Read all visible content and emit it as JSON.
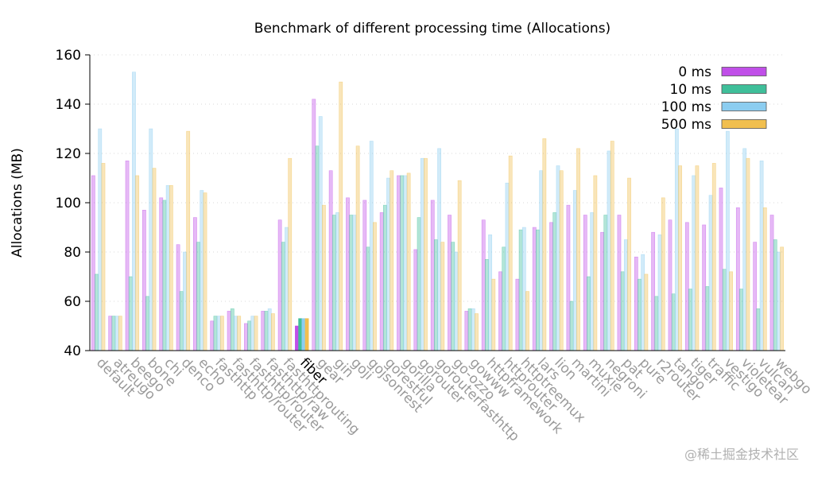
{
  "chart_data": {
    "type": "bar",
    "title": "Benchmark of different processing time (Allocations)",
    "xlabel": "",
    "ylabel": "Allocations (MB)",
    "ylim": [
      40,
      160
    ],
    "yticks": [
      40,
      60,
      80,
      100,
      120,
      140,
      160
    ],
    "highlight_category": "fiber",
    "legend_position": "top-right",
    "categories": [
      "default",
      "atreugo",
      "beego",
      "bone",
      "chi",
      "denco",
      "echo",
      "fasthttp",
      "fasthttp/router",
      "fasthttp/router",
      "fasthttp/raw",
      "fasthttprouting",
      "fiber",
      "gear",
      "gin",
      "goji",
      "gojsonrest",
      "gorestful",
      "gorilla",
      "gorouter",
      "gorouterfasthttp",
      "go-ozzo",
      "gowww",
      "httpframework",
      "httprouter",
      "httptreemux",
      "lars",
      "lion",
      "martini",
      "muxie",
      "negroni",
      "pat",
      "pure",
      "r2router",
      "tango",
      "tiger",
      "traffic",
      "vestigo",
      "violetear",
      "vulcan",
      "webgo"
    ],
    "series": [
      {
        "name": "0 ms",
        "color": "#c04fe8",
        "values": [
          111,
          54,
          117,
          97,
          102,
          83,
          94,
          52,
          56,
          51,
          56,
          93,
          50,
          142,
          113,
          102,
          101,
          96,
          111,
          81,
          101,
          95,
          56,
          93,
          72,
          69,
          90,
          92,
          99,
          95,
          88,
          95,
          78,
          88,
          93,
          92,
          91,
          106,
          98,
          84,
          95
        ]
      },
      {
        "name": "10 ms",
        "color": "#3fbf9a",
        "values": [
          71,
          54,
          70,
          62,
          101,
          64,
          84,
          54,
          57,
          52,
          56,
          84,
          53,
          123,
          95,
          95,
          82,
          99,
          111,
          94,
          85,
          84,
          57,
          77,
          82,
          89,
          89,
          96,
          60,
          70,
          95,
          72,
          69,
          62,
          63,
          65,
          66,
          73,
          65,
          57,
          85
        ]
      },
      {
        "name": "100 ms",
        "color": "#8ccdf0",
        "values": [
          130,
          54,
          153,
          130,
          107,
          80,
          105,
          54,
          54,
          54,
          57,
          90,
          53,
          135,
          96,
          95,
          125,
          110,
          111,
          118,
          122,
          80,
          57,
          87,
          108,
          90,
          113,
          115,
          105,
          96,
          121,
          85,
          79,
          87,
          130,
          111,
          103,
          129,
          122,
          117,
          80
        ]
      },
      {
        "name": "500 ms",
        "color": "#f1bf4f",
        "values": [
          116,
          54,
          111,
          114,
          107,
          129,
          104,
          54,
          54,
          54,
          55,
          118,
          53,
          99,
          149,
          123,
          92,
          113,
          112,
          118,
          84,
          109,
          55,
          69,
          119,
          64,
          126,
          113,
          122,
          111,
          125,
          110,
          71,
          102,
          115,
          115,
          116,
          72,
          118,
          98,
          82
        ]
      }
    ],
    "legend_items": [
      "0 ms",
      "10 ms",
      "100 ms",
      "500 ms"
    ]
  },
  "watermark": "@稀土掘金技术社区"
}
